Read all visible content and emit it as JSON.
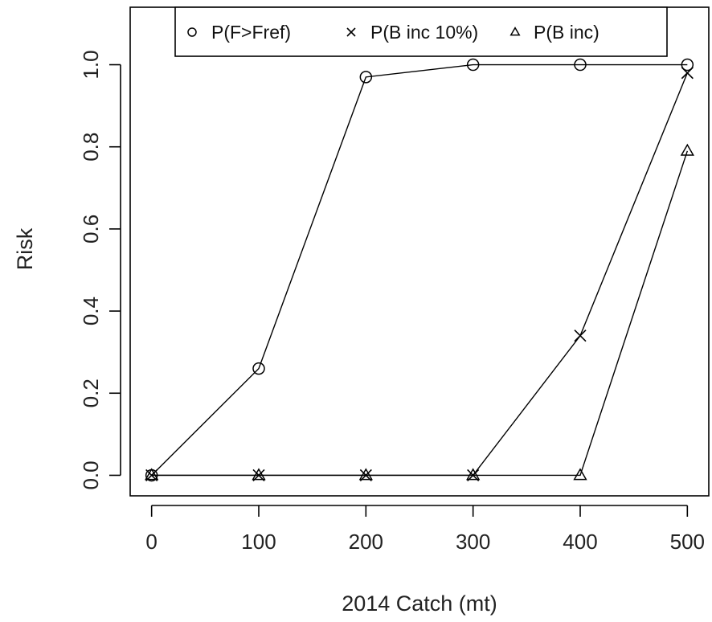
{
  "chart_data": {
    "type": "line",
    "title": "",
    "xlabel": "2014 Catch (mt)",
    "ylabel": "Risk",
    "x": [
      0,
      100,
      200,
      300,
      400,
      500
    ],
    "xlim": [
      -20,
      520
    ],
    "ylim": [
      -0.05,
      1.14
    ],
    "xticks": [
      0,
      100,
      200,
      300,
      400,
      500
    ],
    "xtick_labels": [
      "0",
      "100",
      "200",
      "300",
      "400",
      "500"
    ],
    "yticks": [
      0.0,
      0.2,
      0.4,
      0.6,
      0.8,
      1.0
    ],
    "ytick_labels": [
      "0.0",
      "0.2",
      "0.4",
      "0.6",
      "0.8",
      "1.0"
    ],
    "grid": false,
    "legend_position": "top-center",
    "series": [
      {
        "name": "P(F>Fref)",
        "marker": "circle",
        "values": [
          0.0,
          0.26,
          0.97,
          1.0,
          1.0,
          1.0
        ]
      },
      {
        "name": "P(B inc 10%)",
        "marker": "cross",
        "values": [
          0.0,
          0.0,
          0.0,
          0.0,
          0.34,
          0.98
        ]
      },
      {
        "name": "P(B inc)",
        "marker": "triangle",
        "values": [
          0.0,
          0.0,
          0.0,
          0.0,
          0.0,
          0.79
        ]
      }
    ],
    "colors": {
      "line": "#000000",
      "text": "#222222",
      "background": "#ffffff"
    }
  }
}
